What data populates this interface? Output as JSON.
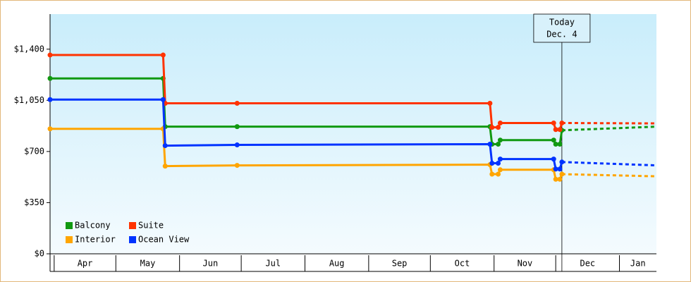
{
  "chart_data": {
    "type": "line",
    "x": [
      -2,
      53,
      54,
      89,
      212,
      213,
      216,
      217,
      243,
      244,
      246,
      247
    ],
    "forecast_x": [
      247,
      293
    ],
    "series": [
      {
        "name": "Balcony",
        "color": "#119911",
        "values": [
          1200,
          1200,
          870,
          870,
          870,
          750,
          750,
          778,
          778,
          750,
          750,
          845
        ],
        "forecast_values": [
          845,
          870
        ]
      },
      {
        "name": "Suite",
        "color": "#ff3300",
        "values": [
          1360,
          1360,
          1030,
          1030,
          1030,
          865,
          865,
          895,
          895,
          850,
          850,
          895
        ],
        "forecast_values": [
          895,
          892
        ]
      },
      {
        "name": "Interior",
        "color": "#ffa500",
        "values": [
          855,
          855,
          600,
          605,
          610,
          545,
          545,
          575,
          575,
          510,
          510,
          545
        ],
        "forecast_values": [
          545,
          530
        ]
      },
      {
        "name": "Ocean View",
        "color": "#0033ff",
        "values": [
          1055,
          1055,
          740,
          745,
          750,
          620,
          620,
          648,
          648,
          580,
          580,
          628
        ],
        "forecast_values": [
          628,
          605
        ]
      }
    ],
    "xlim": [
      -2,
      293
    ],
    "xticks": [
      {
        "value": 0,
        "label": "Apr"
      },
      {
        "value": 30,
        "label": "May"
      },
      {
        "value": 61,
        "label": "Jun"
      },
      {
        "value": 91,
        "label": "Jul"
      },
      {
        "value": 122,
        "label": "Aug"
      },
      {
        "value": 153,
        "label": "Sep"
      },
      {
        "value": 183,
        "label": "Oct"
      },
      {
        "value": 214,
        "label": "Nov"
      },
      {
        "value": 244,
        "label": "Dec"
      },
      {
        "value": 275,
        "label": "Jan"
      }
    ],
    "ylim": [
      0,
      1640
    ],
    "yticks": [
      {
        "value": 0,
        "label": "$0"
      },
      {
        "value": 350,
        "label": "$350"
      },
      {
        "value": 700,
        "label": "$700"
      },
      {
        "value": 1050,
        "label": "$1,050"
      },
      {
        "value": 1400,
        "label": "$1,400"
      }
    ],
    "annotation": {
      "x": 247,
      "lines": [
        "Today",
        "Dec. 4"
      ]
    },
    "legend": "lower left"
  }
}
